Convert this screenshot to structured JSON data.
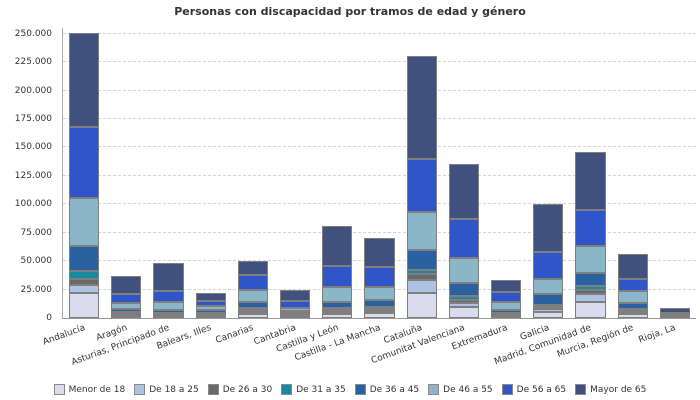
{
  "chart_data": {
    "type": "bar",
    "stacked": true,
    "title": "Personas con discapacidad por tramos de edad y género",
    "xlabel": "",
    "ylabel": "",
    "ylim": [
      0,
      255000
    ],
    "ytick_step": 25000,
    "ytick_labels": [
      "0",
      "25.000",
      "50.000",
      "75.000",
      "100.000",
      "125.000",
      "150.000",
      "175.000",
      "200.000",
      "225.000",
      "250.000"
    ],
    "grid": "horizontal-dashed",
    "legend_position": "bottom",
    "xtick_rotation": -20,
    "bar_border_color": "#7f7f7f",
    "categories": [
      "Andalucía",
      "Aragón",
      "Asturias, Principado de",
      "Balears, Illes",
      "Canarias",
      "Cantabria",
      "Castilla y León",
      "Castilla - La Mancha",
      "Cataluña",
      "Comunitat Valenciana",
      "Extremadura",
      "Galicia",
      "Madrid, Comunidad de",
      "Murcia, Región de",
      "Rioja, La"
    ],
    "series": [
      {
        "name": "Menor de 18",
        "color": "#d8dcec",
        "values": [
          22000,
          1200,
          900,
          1200,
          3500,
          1500,
          3600,
          4200,
          22000,
          9500,
          1500,
          5400,
          14300,
          3600,
          400
        ]
      },
      {
        "name": "De 18 a 25",
        "color": "#aec3e2",
        "values": [
          7400,
          1200,
          900,
          700,
          1600,
          900,
          1800,
          1800,
          11300,
          3600,
          800,
          2400,
          6900,
          1200,
          200
        ]
      },
      {
        "name": "De 26 a 30",
        "color": "#696969",
        "values": [
          4500,
          1400,
          1800,
          1500,
          1600,
          1200,
          1800,
          1800,
          5400,
          2400,
          1200,
          1800,
          3300,
          1200,
          200
        ]
      },
      {
        "name": "De 31 a 35",
        "color": "#19899e",
        "values": [
          7400,
          1500,
          1200,
          1200,
          2200,
          900,
          1800,
          1800,
          3600,
          3600,
          900,
          2100,
          3600,
          1800,
          300
        ]
      },
      {
        "name": "De 36 a 45",
        "color": "#2a61a0",
        "values": [
          22300,
          3000,
          2100,
          2100,
          5300,
          1500,
          5400,
          6000,
          17900,
          11300,
          3000,
          9800,
          11900,
          5400,
          500
        ]
      },
      {
        "name": "De 46 a 55",
        "color": "#8ab6c8",
        "values": [
          41700,
          4500,
          6800,
          3600,
          10200,
          3000,
          13100,
          11300,
          33400,
          22000,
          6500,
          13100,
          23200,
          10400,
          1000
        ]
      },
      {
        "name": "De 56 a 65",
        "color": "#2f55c8",
        "values": [
          62500,
          8700,
          10200,
          4500,
          13000,
          6000,
          17900,
          17900,
          46100,
          35100,
          8900,
          23700,
          31900,
          11000,
          1600
        ]
      },
      {
        "name": "Mayor de 65",
        "color": "#41517d",
        "values": [
          83200,
          15800,
          24600,
          6800,
          12600,
          9800,
          35800,
          25900,
          90400,
          48000,
          11000,
          42000,
          51200,
          21400,
          4300
        ]
      }
    ]
  }
}
